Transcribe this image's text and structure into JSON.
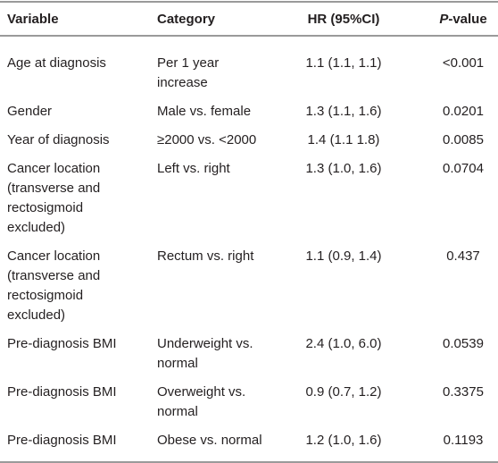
{
  "table": {
    "header": [
      "Variable",
      "Category",
      "HR (95%CI)",
      {
        "italic": "P",
        "rest": "-value"
      }
    ],
    "rows": [
      [
        "Age at diagnosis",
        "Per 1 year\nincrease",
        "1.1 (1.1, 1.1)",
        "<0.001"
      ],
      [
        "Gender",
        "Male vs. female",
        "1.3 (1.1, 1.6)",
        "0.0201"
      ],
      [
        "Year of diagnosis",
        "≥2000 vs. <2000",
        "1.4 (1.1 1.8)",
        "0.0085"
      ],
      [
        "Cancer location\n(transverse and\nrectosigmoid\nexcluded)",
        "Left vs. right",
        "1.3 (1.0, 1.6)",
        "0.0704"
      ],
      [
        "Cancer location\n(transverse and\nrectosigmoid\nexcluded)",
        "Rectum vs. right",
        "1.1 (0.9, 1.4)",
        "0.437"
      ],
      [
        "Pre-diagnosis BMI",
        "Underweight vs.\nnormal",
        "2.4 (1.0, 6.0)",
        "0.0539"
      ],
      [
        "Pre-diagnosis BMI",
        "Overweight vs.\nnormal",
        "0.9 (0.7, 1.2)",
        "0.3375"
      ],
      [
        "Pre-diagnosis BMI",
        "Obese vs. normal",
        "1.2 (1.0, 1.6)",
        "0.1193"
      ]
    ]
  }
}
